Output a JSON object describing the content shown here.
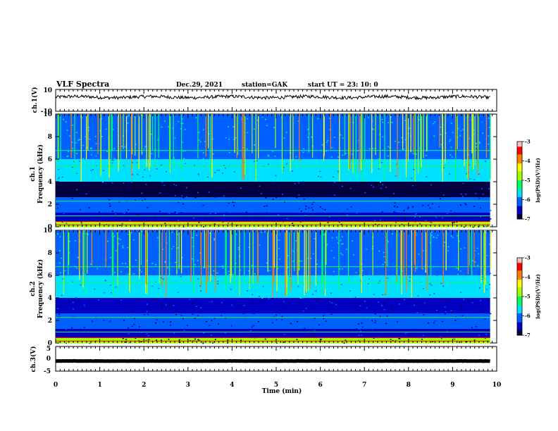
{
  "header": {
    "title": "VLF Spectra",
    "date": "Dec.29, 2021",
    "station": "station=GAK",
    "start_ut": "start UT =  23: 10: 0"
  },
  "chart_data": [
    {
      "type": "line",
      "name": "ch1-waveform",
      "ylabel": "ch.1(V)",
      "ylim": [
        -10,
        10
      ],
      "yticks": [
        "10",
        "-10"
      ],
      "xlim": [
        0,
        10
      ],
      "baseline": 3,
      "data_span_min": [
        0,
        9.85
      ],
      "line_color": "#000000"
    },
    {
      "type": "heatmap",
      "name": "ch1-spectrogram",
      "ylabel_top": "ch.1",
      "ylabel": "Frequency (kHz)",
      "ylim": [
        0,
        10
      ],
      "yticks": [
        "0",
        "2",
        "4",
        "6",
        "8",
        "10"
      ],
      "xlim": [
        0,
        10
      ],
      "data_span_min": [
        0,
        9.85
      ],
      "colorbar": {
        "label": "log(PSD)(V²/Hz)",
        "range": [
          -7,
          -3
        ],
        "ticks": [
          "-3",
          "-4",
          "-5",
          "-6",
          "-7"
        ]
      }
    },
    {
      "type": "heatmap",
      "name": "ch2-spectrogram",
      "ylabel_top": "ch.2",
      "ylabel": "Frequency (kHz)",
      "ylim": [
        0,
        10
      ],
      "yticks": [
        "0",
        "2",
        "4",
        "6",
        "8",
        "10"
      ],
      "xlim": [
        0,
        10
      ],
      "data_span_min": [
        0,
        9.85
      ],
      "colorbar": {
        "label": "log(PSD)(V²/Hz)",
        "range": [
          -7,
          -3
        ],
        "ticks": [
          "-3",
          "-4",
          "-5",
          "-6",
          "-7"
        ]
      }
    },
    {
      "type": "line",
      "name": "ch3-waveform",
      "ylabel": "ch.3(V)",
      "ylim": [
        -5,
        5
      ],
      "yticks": [
        "5",
        "0",
        "-5"
      ],
      "xlim": [
        0,
        10
      ],
      "baseline": -0.9,
      "data_span_min": [
        0,
        9.85
      ],
      "line_color": "#000000"
    }
  ],
  "xaxis": {
    "label": "Time (min)",
    "range": [
      0,
      10
    ],
    "ticks": [
      "0",
      "1",
      "2",
      "3",
      "4",
      "5",
      "6",
      "7",
      "8",
      "9",
      "10"
    ]
  },
  "colormap": [
    "#000040",
    "#0000c0",
    "#0060ff",
    "#00e0ff",
    "#00ff60",
    "#a0ff00",
    "#ffff00",
    "#ff8000",
    "#ff0000",
    "#ffc0c0"
  ]
}
